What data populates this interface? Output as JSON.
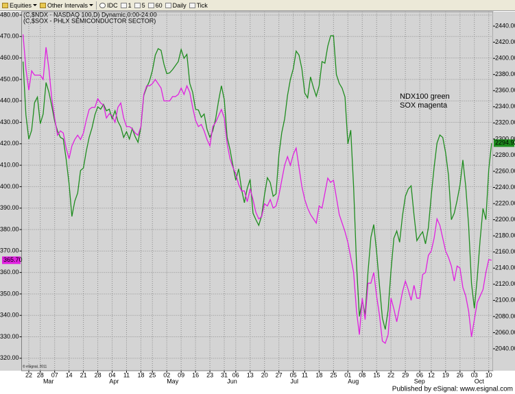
{
  "toolbar": {
    "items": [
      "Equities",
      "Other Intervals",
      "IDC",
      "1",
      "5",
      "60",
      "Daily",
      "Tick"
    ]
  },
  "footer": "Published by eSignal: www.esignal.com",
  "chart_data": {
    "type": "line",
    "watermark": "© eSignal, 2011",
    "annotations": [
      "NDX100 green",
      "SOX magenta"
    ],
    "categories": [
      "Feb 17",
      "Feb 18",
      "Feb 22",
      "Feb 23",
      "Feb 24",
      "Feb 25",
      "Feb 28",
      "Mar 1",
      "Mar 2",
      "Mar 3",
      "Mar 4",
      "Mar 7",
      "Mar 8",
      "Mar 9",
      "Mar 10",
      "Mar 11",
      "Mar 14",
      "Mar 15",
      "Mar 16",
      "Mar 17",
      "Mar 18",
      "Mar 21",
      "Mar 22",
      "Mar 23",
      "Mar 24",
      "Mar 25",
      "Mar 28",
      "Mar 29",
      "Mar 30",
      "Mar 31",
      "Apr 1",
      "Apr 4",
      "Apr 5",
      "Apr 6",
      "Apr 7",
      "Apr 8",
      "Apr 11",
      "Apr 12",
      "Apr 13",
      "Apr 14",
      "Apr 15",
      "Apr 18",
      "Apr 19",
      "Apr 20",
      "Apr 21",
      "Apr 25",
      "Apr 26",
      "Apr 27",
      "Apr 28",
      "Apr 29",
      "May 2",
      "May 3",
      "May 4",
      "May 5",
      "May 6",
      "May 9",
      "May 10",
      "May 11",
      "May 12",
      "May 13",
      "May 16",
      "May 17",
      "May 18",
      "May 19",
      "May 20",
      "May 23",
      "May 24",
      "May 25",
      "May 26",
      "May 27",
      "May 31",
      "Jun 1",
      "Jun 2",
      "Jun 3",
      "Jun 6",
      "Jun 7",
      "Jun 8",
      "Jun 9",
      "Jun 10",
      "Jun 13",
      "Jun 14",
      "Jun 15",
      "Jun 16",
      "Jun 17",
      "Jun 20",
      "Jun 21",
      "Jun 22",
      "Jun 23",
      "Jun 24",
      "Jun 27",
      "Jun 28",
      "Jun 29",
      "Jun 30",
      "Jul 1",
      "Jul 5",
      "Jul 6",
      "Jul 7",
      "Jul 8",
      "Jul 11",
      "Jul 12",
      "Jul 13",
      "Jul 14",
      "Jul 15",
      "Jul 18",
      "Jul 19",
      "Jul 20",
      "Jul 21",
      "Jul 22",
      "Jul 25",
      "Jul 26",
      "Jul 27",
      "Jul 28",
      "Jul 29",
      "Aug 1",
      "Aug 2",
      "Aug 3",
      "Aug 4",
      "Aug 5",
      "Aug 8",
      "Aug 9",
      "Aug 10",
      "Aug 11",
      "Aug 12",
      "Aug 15",
      "Aug 16",
      "Aug 17",
      "Aug 18",
      "Aug 19",
      "Aug 22",
      "Aug 23",
      "Aug 24",
      "Aug 25",
      "Aug 26",
      "Aug 29",
      "Aug 30",
      "Aug 31",
      "Sep 1",
      "Sep 2",
      "Sep 6",
      "Sep 7",
      "Sep 8",
      "Sep 9",
      "Sep 12",
      "Sep 13",
      "Sep 14",
      "Sep 15",
      "Sep 16",
      "Sep 19",
      "Sep 20",
      "Sep 21",
      "Sep 22",
      "Sep 23",
      "Sep 26",
      "Sep 27",
      "Sep 28",
      "Sep 29",
      "Sep 30",
      "Oct 3",
      "Oct 4",
      "Oct 5",
      "Oct 6",
      "Oct 7",
      "Oct 10",
      "Oct 11"
    ],
    "series": [
      {
        "name": "(C,$NDX - NASDAQ 100,D) Dynamic,0:00-24:00",
        "color": "#1e8c1e",
        "axis": "y2",
        "last_value_label": "2294.92",
        "values": [
          2396,
          2330,
          2300,
          2311,
          2345,
          2352,
          2319,
          2331,
          2370,
          2358,
          2341,
          2322,
          2310,
          2302,
          2300,
          2275,
          2245,
          2204,
          2223,
          2233,
          2261,
          2264,
          2285,
          2302,
          2314,
          2330,
          2340,
          2337,
          2343,
          2335,
          2337,
          2325,
          2335,
          2322,
          2315,
          2302,
          2309,
          2300,
          2313,
          2303,
          2296,
          2315,
          2354,
          2364,
          2372,
          2385,
          2404,
          2412,
          2410,
          2393,
          2381,
          2382,
          2386,
          2391,
          2396,
          2411,
          2400,
          2405,
          2369,
          2358,
          2337,
          2336,
          2327,
          2331,
          2312,
          2302,
          2310,
          2325,
          2347,
          2366,
          2349,
          2302,
          2287,
          2267,
          2249,
          2263,
          2238,
          2221,
          2239,
          2250,
          2208,
          2200,
          2193,
          2205,
          2231,
          2252,
          2246,
          2229,
          2232,
          2280,
          2308,
          2325,
          2354,
          2374,
          2387,
          2409,
          2404,
          2387,
          2357,
          2351,
          2377,
          2364,
          2353,
          2366,
          2396,
          2394,
          2415,
          2428,
          2428,
          2380,
          2369,
          2363,
          2352,
          2294,
          2311,
          2240,
          2145,
          2080,
          2100,
          2082,
          2135,
          2178,
          2194,
          2160,
          2118,
          2078,
          2064,
          2088,
          2137,
          2177,
          2186,
          2172,
          2205,
          2229,
          2238,
          2242,
          2206,
          2174,
          2180,
          2185,
          2170,
          2190,
          2230,
          2265,
          2295,
          2305,
          2302,
          2283,
          2255,
          2200,
          2208,
          2224,
          2243,
          2274,
          2241,
          2193,
          2121,
          2090,
          2128,
          2175,
          2214,
          2200,
          2262,
          2294.92
        ]
      },
      {
        "name": "(C,$SOX - PHLX SEMICONDUCTOR SECTOR)",
        "color": "#e020e0",
        "axis": "y",
        "last_value_label": "365.70",
        "values": [
          471,
          455,
          445,
          454,
          452,
          452,
          452,
          450,
          465,
          455,
          441,
          432,
          424,
          426,
          425,
          418,
          413,
          419,
          422,
          424,
          422,
          425,
          431,
          436,
          437,
          437,
          441,
          439,
          438,
          432,
          434,
          433,
          430,
          437,
          439,
          432,
          428,
          428,
          427,
          425,
          424,
          428,
          443,
          447,
          447,
          448,
          450,
          448,
          446,
          440,
          440,
          440,
          442,
          442,
          443,
          446,
          443,
          447,
          444,
          437,
          431,
          428,
          429,
          426,
          422,
          419,
          428,
          430,
          433,
          436,
          432,
          420,
          413,
          409,
          406,
          401,
          398,
          398,
          393,
          399,
          394,
          388,
          385,
          386,
          392,
          391,
          394,
          390,
          391,
          396,
          403,
          410,
          414,
          410,
          415,
          418,
          409,
          400,
          394,
          390,
          387,
          385,
          383,
          391,
          390,
          397,
          404,
          402,
          403,
          395,
          387,
          383,
          379,
          374,
          367,
          360,
          342,
          331,
          348,
          338,
          355,
          355,
          360,
          349,
          340,
          328,
          327,
          331,
          348,
          343,
          337,
          344,
          351,
          356,
          352,
          347,
          354,
          348,
          348,
          359,
          360,
          368,
          370,
          376,
          385,
          382,
          376,
          370,
          367,
          363,
          356,
          363,
          362,
          353,
          349,
          342,
          330,
          338,
          346,
          349,
          352,
          360,
          366,
          365.7
        ]
      }
    ],
    "ylim": [
      314.2,
      481.6
    ],
    "yticks": [
      {
        "value": 320,
        "label": "320.00"
      },
      {
        "value": 330,
        "label": "330.00"
      },
      {
        "value": 340,
        "label": "340.00"
      },
      {
        "value": 350,
        "label": "350.00"
      },
      {
        "value": 360,
        "label": "360.00"
      },
      {
        "value": 370,
        "label": "370.00"
      },
      {
        "value": 380,
        "label": "380.00"
      },
      {
        "value": 390,
        "label": "390.00"
      },
      {
        "value": 400,
        "label": "400.00"
      },
      {
        "value": 410,
        "label": "410.00"
      },
      {
        "value": 420,
        "label": "420.00"
      },
      {
        "value": 430,
        "label": "430.00"
      },
      {
        "value": 440,
        "label": "440.00"
      },
      {
        "value": 450,
        "label": "450.00"
      },
      {
        "value": 460,
        "label": "460.00"
      },
      {
        "value": 470,
        "label": "470.00"
      },
      {
        "value": 480,
        "label": "480.00"
      }
    ],
    "y2lim": [
      2012.8,
      2457.9
    ],
    "y2ticks": [
      {
        "value": 2040,
        "label": "2040.00"
      },
      {
        "value": 2060,
        "label": "2060.00"
      },
      {
        "value": 2080,
        "label": "2080.00"
      },
      {
        "value": 2100,
        "label": "2100.00"
      },
      {
        "value": 2120,
        "label": "2120.00"
      },
      {
        "value": 2140,
        "label": "2140.00"
      },
      {
        "value": 2160,
        "label": "2160.00"
      },
      {
        "value": 2180,
        "label": "2180.00"
      },
      {
        "value": 2200,
        "label": "2200.00"
      },
      {
        "value": 2220,
        "label": "2220.00"
      },
      {
        "value": 2240,
        "label": "2240.00"
      },
      {
        "value": 2260,
        "label": "2260.00"
      },
      {
        "value": 2280,
        "label": "2280.00"
      },
      {
        "value": 2300,
        "label": "2300.00"
      },
      {
        "value": 2320,
        "label": "2320.00"
      },
      {
        "value": 2340,
        "label": "2340.00"
      },
      {
        "value": 2360,
        "label": "2360.00"
      },
      {
        "value": 2380,
        "label": "2380.00"
      },
      {
        "value": 2400,
        "label": "2400.00"
      },
      {
        "value": 2420,
        "label": "2420.00"
      },
      {
        "value": 2440,
        "label": "2440.00"
      }
    ],
    "xticks": [
      {
        "value": "Feb 22",
        "label": "22"
      },
      {
        "value": "Feb 28",
        "label": "28"
      },
      {
        "value": "Mar 7",
        "label": "07"
      },
      {
        "value": "Mar 14",
        "label": "14"
      },
      {
        "value": "Mar 21",
        "label": "21"
      },
      {
        "value": "Mar 28",
        "label": "28"
      },
      {
        "value": "Apr 4",
        "label": "04"
      },
      {
        "value": "Apr 11",
        "label": "11"
      },
      {
        "value": "Apr 18",
        "label": "18"
      },
      {
        "value": "Apr 25",
        "label": "25"
      },
      {
        "value": "May 2",
        "label": "02"
      },
      {
        "value": "May 9",
        "label": "09"
      },
      {
        "value": "May 16",
        "label": "16"
      },
      {
        "value": "May 23",
        "label": "23"
      },
      {
        "value": "May 31",
        "label": "31"
      },
      {
        "value": "Jun 6",
        "label": "06"
      },
      {
        "value": "Jun 13",
        "label": "13"
      },
      {
        "value": "Jun 20",
        "label": "20"
      },
      {
        "value": "Jun 27",
        "label": "27"
      },
      {
        "value": "Jul 5",
        "label": "05"
      },
      {
        "value": "Jul 11",
        "label": "11"
      },
      {
        "value": "Jul 18",
        "label": "18"
      },
      {
        "value": "Jul 25",
        "label": "25"
      },
      {
        "value": "Aug 1",
        "label": "01"
      },
      {
        "value": "Aug 8",
        "label": "08"
      },
      {
        "value": "Aug 15",
        "label": "15"
      },
      {
        "value": "Aug 22",
        "label": "22"
      },
      {
        "value": "Aug 29",
        "label": "29"
      },
      {
        "value": "Sep 6",
        "label": "06"
      },
      {
        "value": "Sep 12",
        "label": "12"
      },
      {
        "value": "Sep 19",
        "label": "19"
      },
      {
        "value": "Sep 26",
        "label": "26"
      },
      {
        "value": "Oct 3",
        "label": "03"
      },
      {
        "value": "Oct 10",
        "label": "10"
      }
    ],
    "month_labels": [
      {
        "value": "Mar 1",
        "label": "Mar"
      },
      {
        "value": "Apr 1",
        "label": "Apr"
      },
      {
        "value": "May 2",
        "label": "May"
      },
      {
        "value": "Jun 1",
        "label": "Jun"
      },
      {
        "value": "Jul 1",
        "label": "Jul"
      },
      {
        "value": "Aug 1",
        "label": "Aug"
      },
      {
        "value": "Sep 1",
        "label": "Sep"
      },
      {
        "value": "Oct 3",
        "label": "Oct"
      }
    ],
    "grid": true
  }
}
